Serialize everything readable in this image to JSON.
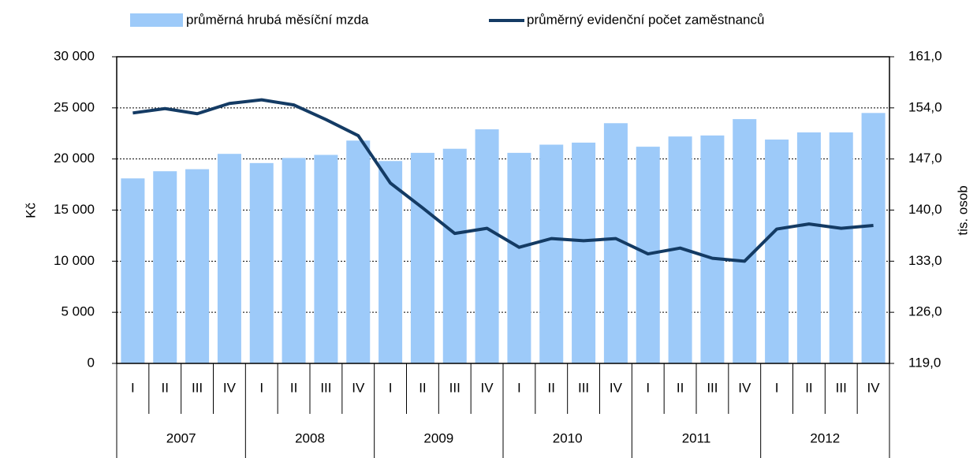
{
  "chart_data": {
    "type": "bar-line",
    "categories": [
      "I",
      "II",
      "III",
      "IV",
      "I",
      "II",
      "III",
      "IV",
      "I",
      "II",
      "III",
      "IV",
      "I",
      "II",
      "III",
      "IV",
      "I",
      "II",
      "III",
      "IV",
      "I",
      "II",
      "III",
      "IV"
    ],
    "years": [
      "2007",
      "2008",
      "2009",
      "2010",
      "2011",
      "2012"
    ],
    "series": [
      {
        "name": "průměrná hrubá měsíční mzda",
        "type": "bar",
        "color": "#9dcaf9",
        "axis": "y",
        "values": [
          18100,
          18800,
          19000,
          20500,
          19600,
          20100,
          20400,
          21800,
          19800,
          20600,
          21000,
          22900,
          20600,
          21400,
          21600,
          23500,
          21200,
          22200,
          22300,
          23900,
          21900,
          22600,
          22600,
          24500
        ]
      },
      {
        "name": "průměrný evidenční počet zaměstnanců",
        "type": "line",
        "color": "#143b64",
        "axis": "y2",
        "values": [
          153.3,
          153.9,
          153.2,
          154.6,
          155.1,
          154.4,
          152.4,
          150.2,
          143.7,
          140.3,
          136.8,
          137.5,
          134.9,
          136.1,
          135.8,
          136.1,
          134.0,
          134.8,
          133.4,
          133.0,
          137.4,
          138.1,
          137.5,
          137.9
        ]
      }
    ],
    "ylabel": "Kč",
    "y2label": "tis. osob",
    "ylim": [
      0,
      30000
    ],
    "yticks": [
      0,
      {
        "value": 5000,
        "label": "5 000"
      },
      {
        "value": 10000,
        "label": "10 000"
      },
      {
        "value": 15000,
        "label": "15 000"
      },
      {
        "value": 20000,
        "label": "20 000"
      },
      {
        "value": 25000,
        "label": "25 000"
      },
      {
        "value": 30000,
        "label": "30 000"
      }
    ],
    "y2lim": [
      119,
      161
    ],
    "y2ticks": [
      {
        "value": 119,
        "label": "119,0"
      },
      {
        "value": 126,
        "label": "126,0"
      },
      {
        "value": 133,
        "label": "133,0"
      },
      {
        "value": 140,
        "label": "140,0"
      },
      {
        "value": 147,
        "label": "147,0"
      },
      {
        "value": 154,
        "label": "154,0"
      },
      {
        "value": 161,
        "label": "161,0"
      }
    ],
    "grid": true,
    "legend": "top"
  }
}
